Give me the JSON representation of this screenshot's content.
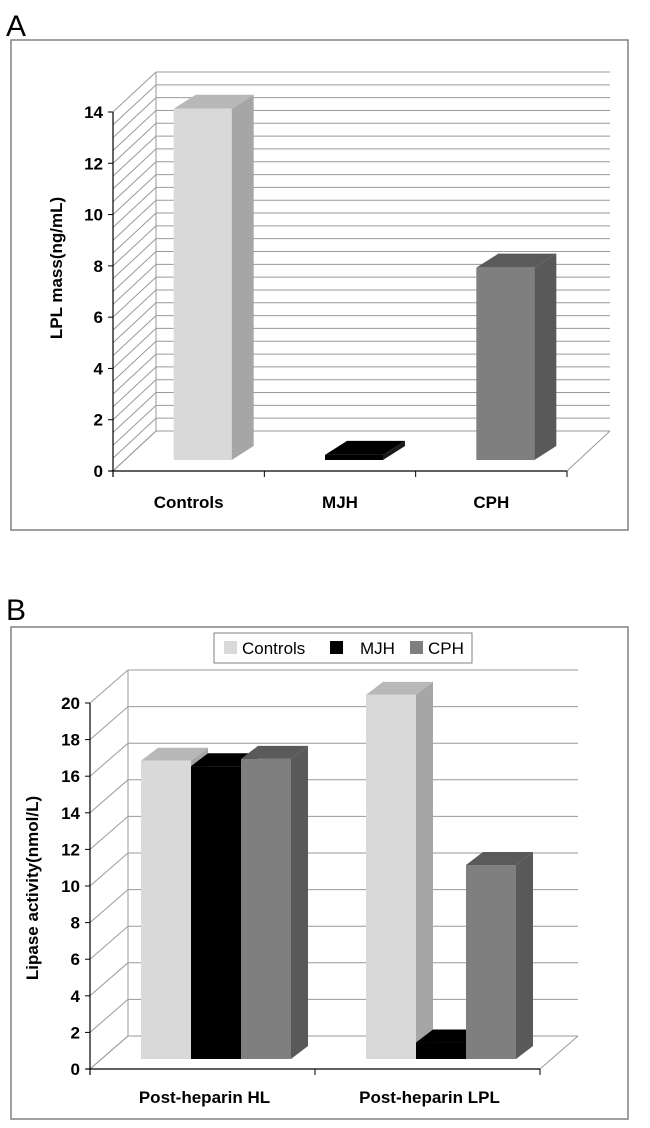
{
  "colors": {
    "controls": "#d9d9d9",
    "controls_side": "#a6a6a6",
    "controls_top": "#b8b8b8",
    "mjh": "#000000",
    "mjh_side": "#1a1a1a",
    "cph": "#7f7f7f",
    "cph_side": "#595959",
    "cph_top": "#5a5a5a",
    "grid": "#9a9a9a",
    "frame": "#808080"
  },
  "chart_data": [
    {
      "panel": "A",
      "type": "bar",
      "title": "",
      "xlabel": "",
      "ylabel": "LPL mass(ng/mL)",
      "ylim": [
        0,
        14
      ],
      "yticks": [
        "0",
        "2",
        "4",
        "6",
        "8",
        "10",
        "12",
        "14"
      ],
      "gridlines": "every 0.5",
      "categories": [
        "Controls",
        "MJH",
        "CPH"
      ],
      "series": [
        {
          "name": "LPL mass",
          "values": [
            13.7,
            0.2,
            7.5
          ]
        }
      ]
    },
    {
      "panel": "B",
      "type": "bar",
      "title": "",
      "xlabel": "",
      "ylabel": "Lipase activity(nmol/L)",
      "ylim": [
        0,
        20
      ],
      "yticks": [
        "0",
        "2",
        "4",
        "6",
        "8",
        "10",
        "12",
        "14",
        "16",
        "18",
        "20"
      ],
      "categories": [
        "Post-heparin HL",
        "Post-heparin LPL"
      ],
      "legend": {
        "placement": "top-center",
        "entries": [
          "Controls",
          "MJH",
          "CPH"
        ]
      },
      "series": [
        {
          "name": "Controls",
          "values": [
            16.3,
            19.9
          ]
        },
        {
          "name": "MJH",
          "values": [
            16.0,
            0.9
          ]
        },
        {
          "name": "CPH",
          "values": [
            16.4,
            10.6
          ]
        }
      ]
    }
  ]
}
